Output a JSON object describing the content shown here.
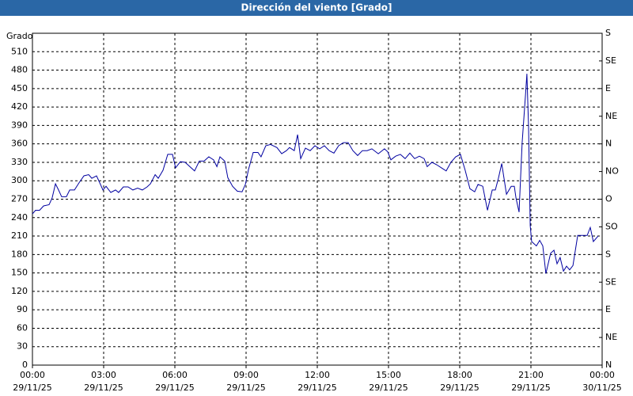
{
  "chart_data": {
    "type": "line",
    "title": "Dirección del viento [Grado]",
    "y_label": "Grado",
    "x": [
      0,
      0.13,
      0.3,
      0.47,
      0.7,
      0.83,
      0.97,
      1.1,
      1.23,
      1.43,
      1.57,
      1.77,
      1.97,
      2.17,
      2.37,
      2.5,
      2.7,
      2.83,
      2.97,
      3.1,
      3.3,
      3.5,
      3.63,
      3.83,
      4.03,
      4.23,
      4.43,
      4.63,
      4.83,
      4.97,
      5.17,
      5.3,
      5.5,
      5.7,
      5.9,
      6.03,
      6.23,
      6.43,
      6.63,
      6.83,
      7.03,
      7.23,
      7.43,
      7.63,
      7.77,
      7.9,
      8.1,
      8.23,
      8.43,
      8.63,
      8.83,
      8.97,
      9.1,
      9.3,
      9.5,
      9.63,
      9.83,
      10.03,
      10.3,
      10.5,
      10.7,
      10.83,
      11.03,
      11.17,
      11.3,
      11.5,
      11.7,
      11.9,
      12.1,
      12.3,
      12.5,
      12.7,
      12.9,
      13.1,
      13.3,
      13.5,
      13.7,
      13.9,
      14.1,
      14.3,
      14.57,
      14.83,
      14.97,
      15.1,
      15.3,
      15.5,
      15.7,
      15.9,
      16.1,
      16.3,
      16.5,
      16.63,
      16.83,
      17.03,
      17.23,
      17.43,
      17.63,
      17.83,
      18.03,
      18.23,
      18.43,
      18.63,
      18.77,
      18.97,
      19.17,
      19.37,
      19.5,
      19.63,
      19.77,
      19.97,
      20.17,
      20.3,
      20.37,
      20.5,
      20.63,
      20.77,
      20.83,
      20.9,
      20.97,
      21.03,
      21.23,
      21.37,
      21.5,
      21.63,
      21.83,
      21.97,
      22.1,
      22.23,
      22.37,
      22.5,
      22.63,
      22.77,
      22.97,
      23.17,
      23.37,
      23.5,
      23.63,
      23.83
    ],
    "series": [
      {
        "color": "#0000a0",
        "values": [
          246,
          252,
          252,
          259,
          261,
          272,
          295,
          285,
          274,
          274,
          285,
          285,
          297,
          308,
          310,
          304,
          308,
          297,
          285,
          291,
          281,
          285,
          281,
          290,
          290,
          285,
          288,
          285,
          290,
          295,
          310,
          304,
          317,
          343,
          343,
          321,
          331,
          330,
          323,
          316,
          332,
          332,
          339,
          334,
          323,
          339,
          332,
          305,
          291,
          283,
          282,
          294,
          318,
          346,
          346,
          339,
          357,
          359,
          354,
          344,
          349,
          354,
          349,
          375,
          336,
          353,
          349,
          357,
          352,
          357,
          349,
          345,
          357,
          362,
          362,
          349,
          341,
          349,
          349,
          352,
          344,
          352,
          347,
          334,
          340,
          343,
          336,
          345,
          336,
          340,
          336,
          323,
          330,
          326,
          321,
          316,
          330,
          339,
          343,
          317,
          287,
          282,
          294,
          291,
          252,
          285,
          285,
          304,
          328,
          278,
          291,
          291,
          272,
          249,
          362,
          439,
          474,
          388,
          227,
          201,
          194,
          203,
          194,
          149,
          182,
          187,
          165,
          175,
          153,
          161,
          155,
          162,
          211,
          211,
          211,
          224,
          201,
          210
        ]
      }
    ],
    "xlim": [
      0,
      24
    ],
    "xticks": [
      {
        "value": 0,
        "label": "00:00"
      },
      {
        "value": 3,
        "label": "03:00"
      },
      {
        "value": 6,
        "label": "06:00"
      },
      {
        "value": 9,
        "label": "09:00"
      },
      {
        "value": 12,
        "label": "12:00"
      },
      {
        "value": 15,
        "label": "15:00"
      },
      {
        "value": 18,
        "label": "18:00"
      },
      {
        "value": 21,
        "label": "21:00"
      },
      {
        "value": 24,
        "label": "00:00"
      }
    ],
    "xtick_dates": [
      "29/11/25",
      "29/11/25",
      "29/11/25",
      "29/11/25",
      "29/11/25",
      "29/11/25",
      "29/11/25",
      "29/11/25",
      "30/11/25"
    ],
    "ylim": [
      0,
      540
    ],
    "yticks": [
      0,
      30,
      60,
      90,
      120,
      150,
      180,
      210,
      240,
      270,
      300,
      330,
      360,
      390,
      420,
      450,
      480,
      510
    ],
    "y2lim": [
      0,
      540
    ],
    "y2ticks": [
      {
        "value": 0,
        "label": "N"
      },
      {
        "value": 45,
        "label": "NE"
      },
      {
        "value": 90,
        "label": "E"
      },
      {
        "value": 135,
        "label": "SE"
      },
      {
        "value": 180,
        "label": "S"
      },
      {
        "value": 225,
        "label": "SO"
      },
      {
        "value": 270,
        "label": "O"
      },
      {
        "value": 315,
        "label": "NO"
      },
      {
        "value": 360,
        "label": "N"
      },
      {
        "value": 405,
        "label": "NE"
      },
      {
        "value": 450,
        "label": "E"
      },
      {
        "value": 495,
        "label": "SE"
      },
      {
        "value": 540,
        "label": "S"
      }
    ],
    "grid": true
  }
}
